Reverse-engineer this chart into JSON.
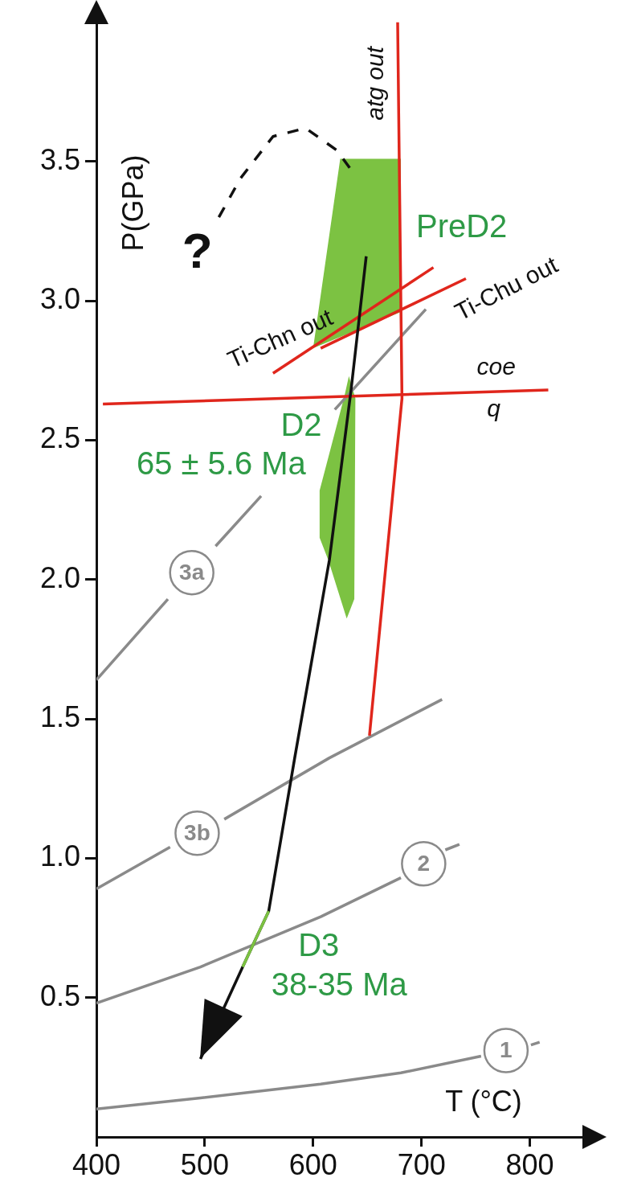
{
  "chart_data": {
    "type": "line",
    "xlabel": "T (°C)",
    "ylabel": "P(GPa)",
    "xlim": [
      400,
      850
    ],
    "ylim": [
      0,
      4.0
    ],
    "xticks": [
      400,
      500,
      600,
      700,
      800
    ],
    "yticks": [
      {
        "value": 0.5,
        "label": "0.5"
      },
      {
        "value": 1,
        "label": "1.0"
      },
      {
        "value": 1.5,
        "label": "1.5"
      },
      {
        "value": 2,
        "label": "2.0"
      },
      {
        "value": 2.5,
        "label": "2.5"
      },
      {
        "value": 3,
        "label": "3.0"
      },
      {
        "value": 3.5,
        "label": "3.5"
      }
    ],
    "grid": false,
    "legend": false,
    "series": [
      {
        "type": "area",
        "color": "#7cc242",
        "x": [
          625,
          681,
          681,
          600,
          625
        ],
        "values": [
          3.51,
          3.51,
          2.96,
          2.83,
          3.51
        ]
      },
      {
        "type": "area",
        "color": "#7cc242",
        "x": [
          633,
          639,
          638,
          631,
          614,
          606,
          606,
          629,
          633
        ],
        "values": [
          2.73,
          2.65,
          1.93,
          1.86,
          2.07,
          2.15,
          2.32,
          2.66,
          2.73
        ]
      },
      {
        "name": "1",
        "color": "#8a8a8a",
        "x": [
          400,
          496,
          607,
          681,
          755,
          778,
          801,
          809
        ],
        "values": [
          0.1,
          0.14,
          0.19,
          0.23,
          0.29,
          null,
          0.33,
          0.34
        ]
      },
      {
        "name": "2",
        "color": "#8a8a8a",
        "x": [
          400,
          496,
          607,
          681,
          702,
          722,
          735
        ],
        "values": [
          0.48,
          0.61,
          0.79,
          0.93,
          null,
          1.03,
          1.05
        ]
      },
      {
        "name": "3b",
        "color": "#8a8a8a",
        "x": [
          400,
          468,
          493,
          518,
          615,
          719
        ],
        "values": [
          0.89,
          1.04,
          null,
          1.14,
          1.36,
          1.57
        ]
      },
      {
        "name": "3a",
        "color": "#8a8a8a",
        "x": [
          400,
          466,
          488,
          510,
          552,
          590,
          620,
          704
        ],
        "values": [
          1.64,
          1.93,
          null,
          2.12,
          2.3,
          null,
          2.61,
          2.97
        ]
      },
      {
        "color": "#e0261c",
        "x": [
          678,
          682,
          652
        ],
        "values": [
          4.0,
          2.65,
          1.44
        ]
      },
      {
        "color": "#e0261c",
        "x": [
          406,
          817
        ],
        "values": [
          2.63,
          2.68
        ]
      },
      {
        "color": "#e0261c",
        "x": [
          563,
          711
        ],
        "values": [
          2.74,
          3.12
        ]
      },
      {
        "color": "#e0261c",
        "x": [
          607,
          741
        ],
        "values": [
          2.83,
          3.08
        ]
      },
      {
        "color": "#111111",
        "line_style": "dashed",
        "x": [
          513,
          533,
          563,
          593,
          622,
          637
        ],
        "values": [
          3.3,
          3.44,
          3.59,
          3.62,
          3.54,
          3.46
        ]
      },
      {
        "color": "#111111",
        "x": [
          649,
          635,
          615,
          583,
          559,
          535,
          496
        ],
        "values": [
          3.16,
          2.68,
          2.07,
          1.36,
          0.81,
          0.61,
          0.28
        ]
      },
      {
        "color": "#7cc242",
        "x": [
          559,
          535
        ],
        "values": [
          0.81,
          0.61
        ]
      }
    ],
    "annotations": [
      "atg out",
      "Ti-Chn out",
      "Ti-Chu out",
      "coe",
      "q",
      "?",
      "PreD2",
      "D2",
      "65 ± 5.6 Ma",
      "D3",
      "38-35 Ma"
    ]
  }
}
